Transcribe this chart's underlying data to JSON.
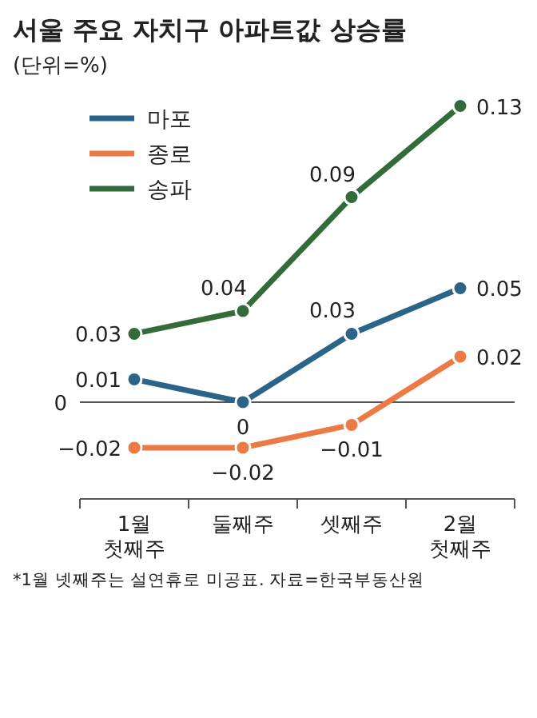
{
  "chart_data": {
    "type": "line",
    "title": "서울 주요 자치구 아파트값 상승률",
    "subtitle": "(단위=%)",
    "categories": [
      "1월\n첫째주",
      "둘째주",
      "셋째주",
      "2월\n첫째주"
    ],
    "series": [
      {
        "name": "마포",
        "color": "#2b6489",
        "values": [
          0.01,
          0,
          0.03,
          0.05
        ]
      },
      {
        "name": "종로",
        "color": "#ec7a45",
        "values": [
          -0.02,
          -0.02,
          -0.01,
          0.02
        ]
      },
      {
        "name": "송파",
        "color": "#336b3a",
        "values": [
          0.03,
          0.04,
          0.09,
          0.13
        ]
      }
    ],
    "ref_lines": [
      {
        "axis": "y",
        "value": 0,
        "label": "0",
        "color": "#555555"
      }
    ],
    "legend": "top left",
    "marker": "circle",
    "line_style": "solid",
    "data_labels": true,
    "annotations": [
      "*1월 넷째주는 설연휴로 미공표. 자료=한국부동산원"
    ]
  }
}
